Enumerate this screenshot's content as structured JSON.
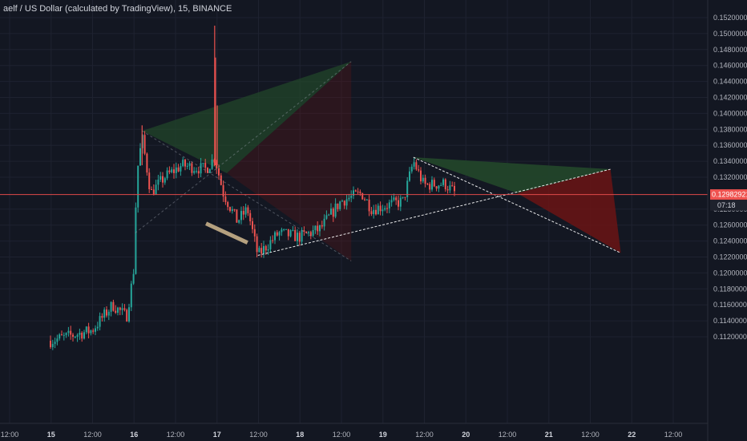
{
  "header": {
    "symbol_line": "aelf / US Dollar (calculated by TradingView), 15, BINANCE"
  },
  "price_axis": {
    "ticks": [
      "0.15200000",
      "0.15000000",
      "0.14800000",
      "0.14600000",
      "0.14400000",
      "0.14200000",
      "0.14000000",
      "0.13800000",
      "0.13600000",
      "0.13400000",
      "0.13200000",
      "0.12800000",
      "0.12600000",
      "0.12400000",
      "0.12200000",
      "0.12000000",
      "0.11800000",
      "0.11600000",
      "0.11400000",
      "0.11200000"
    ],
    "last_price_label": "0.12982921",
    "countdown_label": "07:18"
  },
  "colors": {
    "background": "#131722",
    "grid": "#1e2230",
    "up_candle": "#26a69a",
    "down_candle": "#ef5350",
    "price_line": "#e04a4a",
    "green_fill": "#22452a",
    "red_fill": "#6b1414",
    "axis_text": "#b2b5be"
  },
  "chart_data": {
    "type": "candlestick",
    "title": "aelf / US Dollar (calculated by TradingView), 15, BINANCE",
    "interval": "15",
    "exchange": "BINANCE",
    "x_tick_labels": [
      "12:00",
      "15",
      "12:00",
      "16",
      "12:00",
      "17",
      "12:00",
      "18",
      "12:00",
      "19",
      "12:00",
      "20",
      "12:00",
      "21",
      "12:00",
      "22",
      "12:00"
    ],
    "y_range": [
      0.111,
      0.153
    ],
    "last_price": 0.12982921,
    "price_path": [
      {
        "t": "2020-01-15T00:00",
        "p": 0.1115
      },
      {
        "t": "2020-01-15T12:00",
        "p": 0.1128
      },
      {
        "t": "2020-01-15T18:00",
        "p": 0.116
      },
      {
        "t": "2020-01-15T22:00",
        "p": 0.1145
      },
      {
        "t": "2020-01-16T00:00",
        "p": 0.12
      },
      {
        "t": "2020-01-16T01:00",
        "p": 0.1325
      },
      {
        "t": "2020-01-16T02:30",
        "p": 0.137
      },
      {
        "t": "2020-01-16T05:00",
        "p": 0.13
      },
      {
        "t": "2020-01-16T09:00",
        "p": 0.132
      },
      {
        "t": "2020-01-16T14:00",
        "p": 0.1335
      },
      {
        "t": "2020-01-16T21:00",
        "p": 0.133
      },
      {
        "t": "2020-01-16T23:30",
        "p": 0.1345
      },
      {
        "t": "2020-01-17T02:00",
        "p": 0.13
      },
      {
        "t": "2020-01-17T06:00",
        "p": 0.1265
      },
      {
        "t": "2020-01-17T09:00",
        "p": 0.128
      },
      {
        "t": "2020-01-17T12:00",
        "p": 0.1222
      },
      {
        "t": "2020-01-17T18:00",
        "p": 0.125
      },
      {
        "t": "2020-01-18T00:00",
        "p": 0.1245
      },
      {
        "t": "2020-01-18T06:00",
        "p": 0.1255
      },
      {
        "t": "2020-01-18T12:00",
        "p": 0.129
      },
      {
        "t": "2020-01-18T18:00",
        "p": 0.13
      },
      {
        "t": "2020-01-18T21:00",
        "p": 0.128
      },
      {
        "t": "2020-01-19T06:00",
        "p": 0.129
      },
      {
        "t": "2020-01-19T09:00",
        "p": 0.134
      },
      {
        "t": "2020-01-19T12:00",
        "p": 0.131
      },
      {
        "t": "2020-01-19T18:00",
        "p": 0.1312
      },
      {
        "t": "2020-01-19T21:00",
        "p": 0.13
      }
    ],
    "spikes": [
      {
        "t": "2020-01-16T02:30",
        "high": 0.1385
      },
      {
        "t": "2020-01-16T23:30",
        "high": 0.151
      },
      {
        "t": "2020-01-16T23:45",
        "high": 0.147
      },
      {
        "t": "2020-01-17T00:15",
        "high": 0.141
      }
    ],
    "drawings": {
      "triangle": {
        "upper_line": [
          {
            "t": "2020-01-19T09:00",
            "p": 0.1345
          },
          {
            "t": "2020-01-21T21:00",
            "p": 0.1225
          }
        ],
        "lower_line": [
          {
            "t": "2020-01-17T12:00",
            "p": 0.1222
          },
          {
            "t": "2020-01-21T18:00",
            "p": 0.133
          }
        ],
        "projection_green": [
          {
            "t": "2020-01-19T09:00",
            "p": 0.1345
          },
          {
            "t": "2020-01-21T18:00",
            "p": 0.133
          },
          {
            "t": "2020-01-20T15:00",
            "p": 0.13
          }
        ],
        "projection_red": [
          {
            "t": "2020-01-20T15:00",
            "p": 0.13
          },
          {
            "t": "2020-01-21T18:00",
            "p": 0.133
          },
          {
            "t": "2020-01-21T21:00",
            "p": 0.1225
          }
        ]
      },
      "early_green": [
        {
          "t": "2020-01-16T02:30",
          "p": 0.1378
        },
        {
          "t": "2020-01-18T15:00",
          "p": 0.1465
        },
        {
          "t": "2020-01-17T03:00",
          "p": 0.1325
        }
      ],
      "early_red": [
        {
          "t": "2020-01-17T03:00",
          "p": 0.1325
        },
        {
          "t": "2020-01-18T15:00",
          "p": 0.1465
        },
        {
          "t": "2020-01-18T15:00",
          "p": 0.1215
        }
      ],
      "early_lines": [
        [
          {
            "t": "2020-01-16T02:30",
            "p": 0.1378
          },
          {
            "t": "2020-01-18T15:00",
            "p": 0.1215
          }
        ],
        [
          {
            "t": "2020-01-16T00:30",
            "p": 0.125
          },
          {
            "t": "2020-01-18T15:00",
            "p": 0.1465
          }
        ]
      ],
      "beige_marker": [
        {
          "t": "2020-01-16T21:00",
          "p": 0.1262
        },
        {
          "t": "2020-01-17T09:00",
          "p": 0.1238
        }
      ]
    }
  }
}
